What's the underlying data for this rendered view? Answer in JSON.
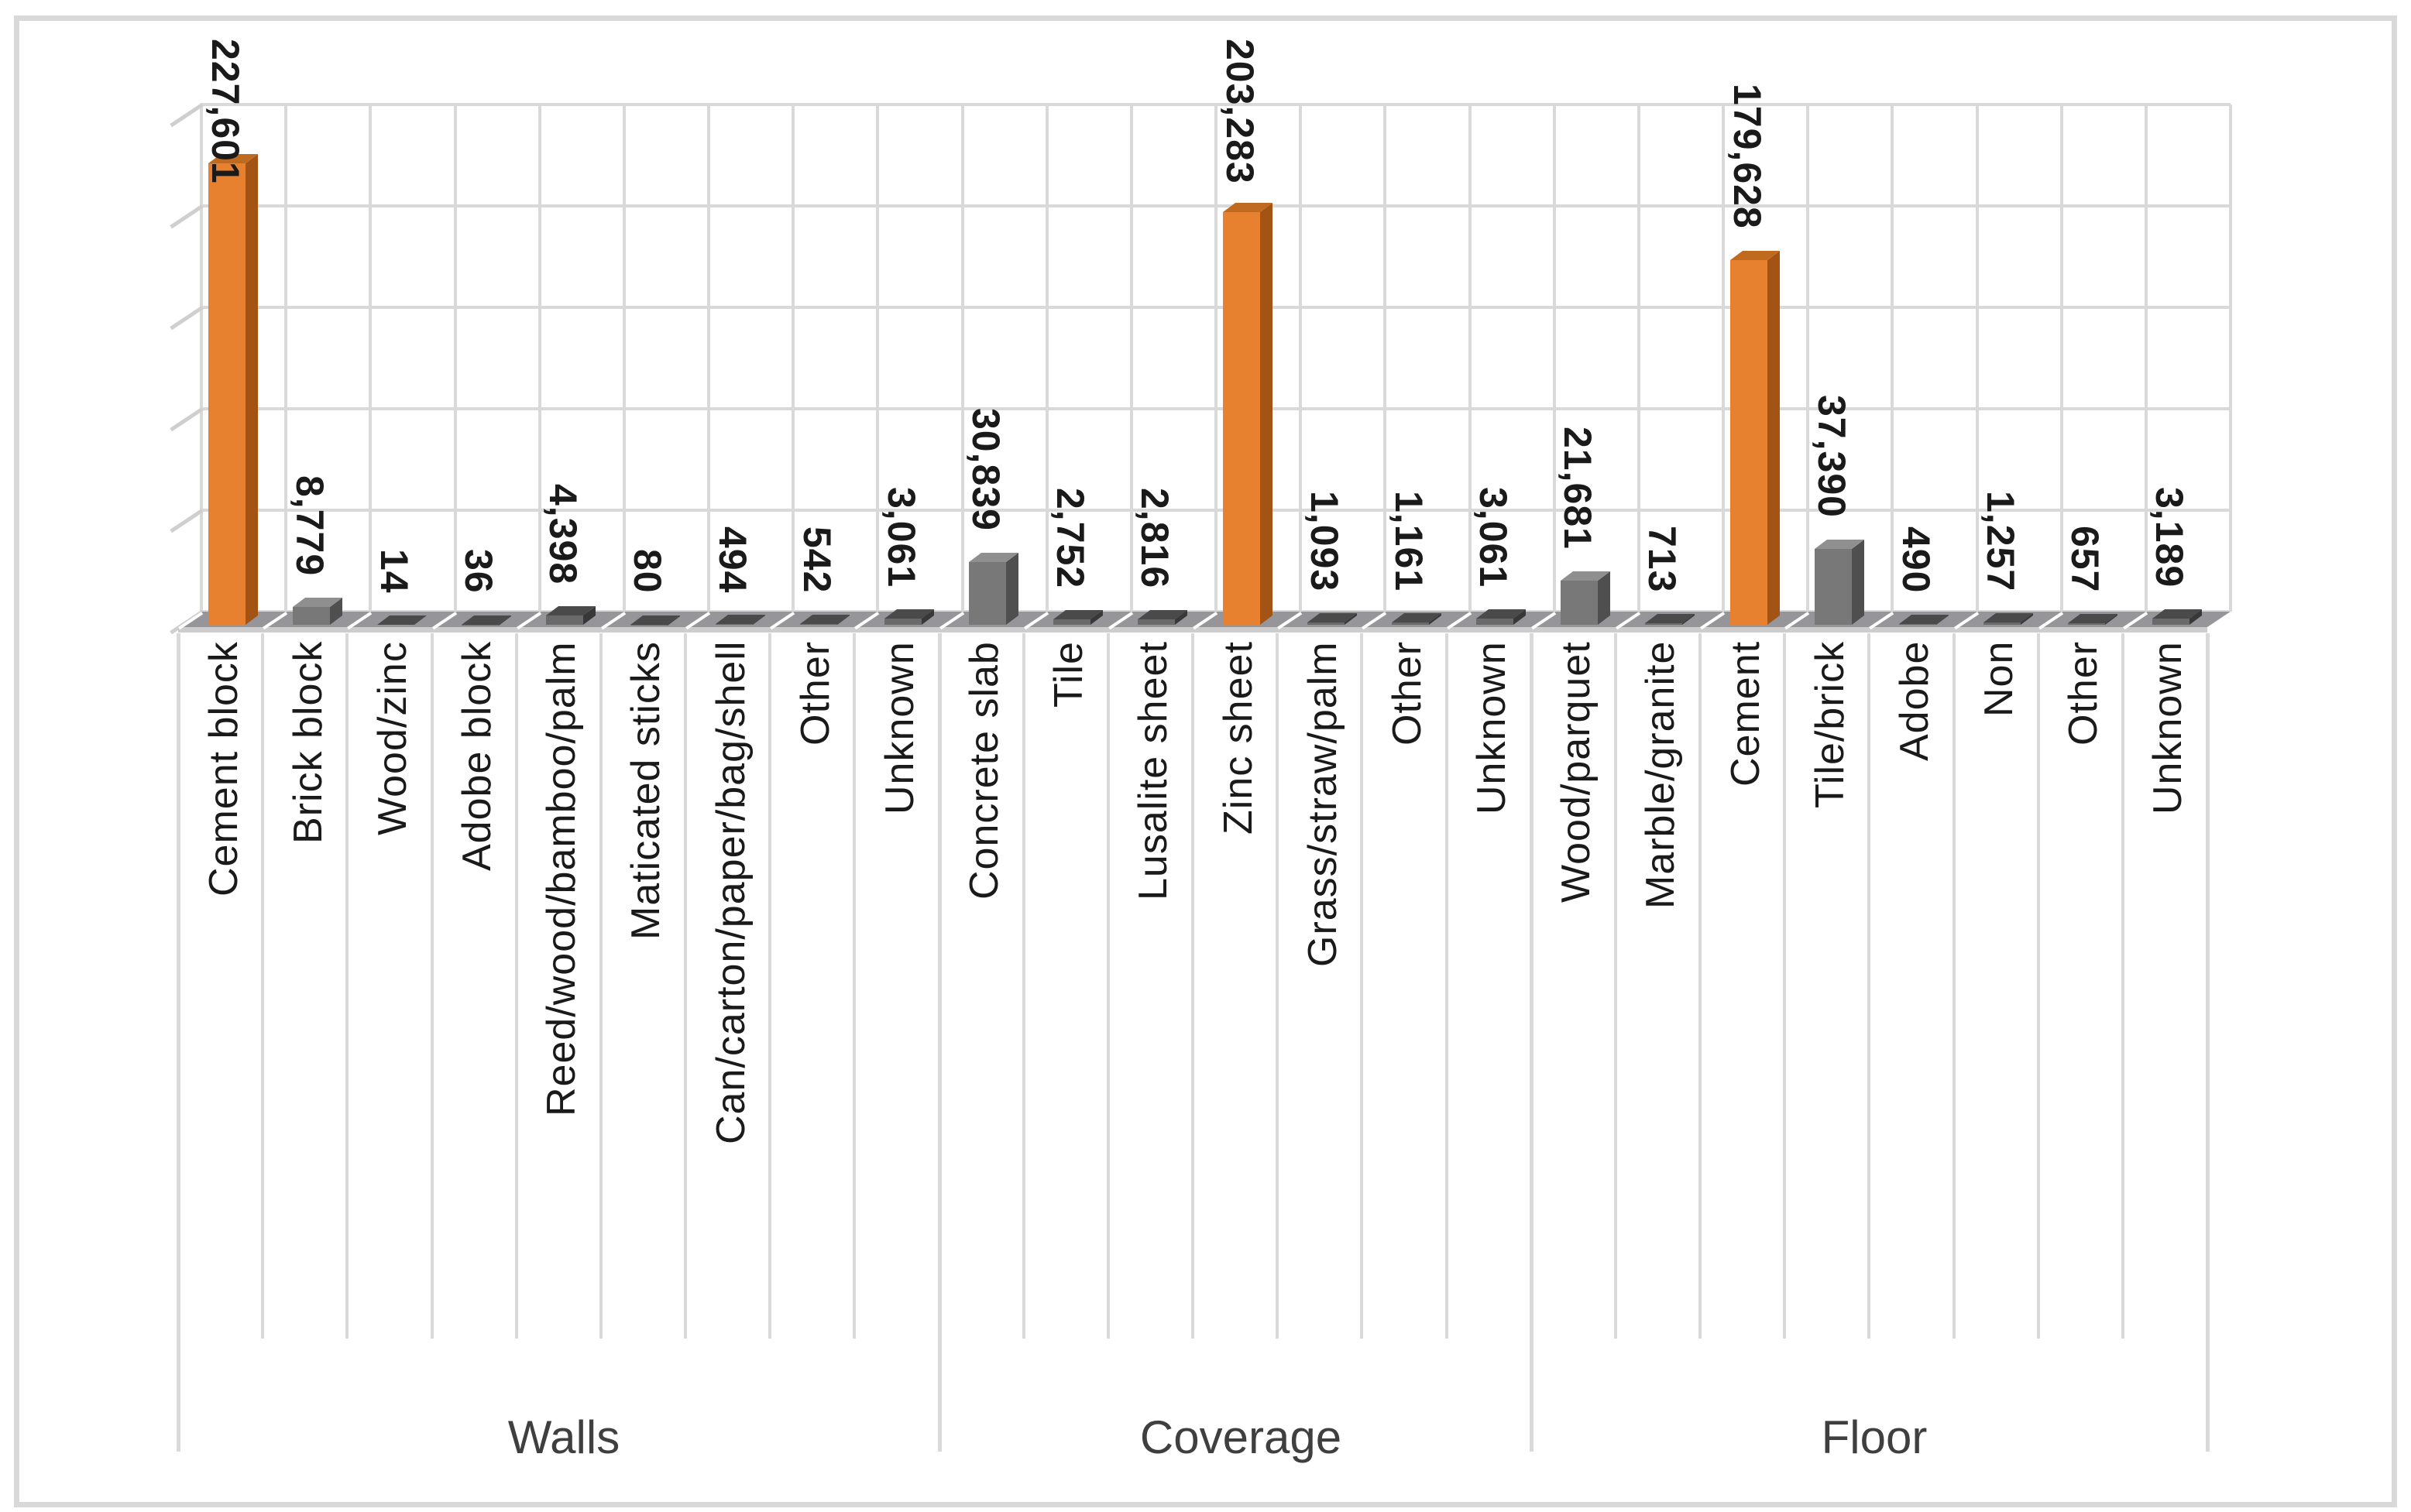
{
  "chart_data": {
    "type": "bar",
    "title": "",
    "xlabel": "",
    "ylabel": "",
    "ylim": [
      0,
      250000
    ],
    "gridline_step": 50000,
    "grid": "on",
    "legend_position": "none",
    "value_axis_labels_visible": false,
    "style": "excel-3d-clustered-column",
    "colors": {
      "highlight_front": "#E8812F",
      "highlight_top": "#C06A1F",
      "highlight_side": "#A35415",
      "gray_front": "#787878",
      "gray_top": "#8F8F8F",
      "gray_side": "#4F4F4F",
      "dark_front": "#6A6A6A",
      "dark_top": "#4A4A4A",
      "dark_side": "#383838",
      "gridline": "#d9d9d9",
      "floor": "#95959a"
    },
    "groups": [
      {
        "label": "Walls",
        "items": [
          {
            "label": "Cement block",
            "value": 227601,
            "value_label": "227,601",
            "highlight": true
          },
          {
            "label": "Brick block",
            "value": 8779,
            "value_label": "8,779",
            "highlight": false
          },
          {
            "label": "Wood/zinc",
            "value": 14,
            "value_label": "14",
            "highlight": false
          },
          {
            "label": "Adobe block",
            "value": 36,
            "value_label": "36",
            "highlight": false
          },
          {
            "label": "Reed/wood/bamboo/palm",
            "value": 4398,
            "value_label": "4,398",
            "highlight": false
          },
          {
            "label": "Maticated sticks",
            "value": 80,
            "value_label": "80",
            "highlight": false
          },
          {
            "label": "Can/carton/paper/bag/shell",
            "value": 494,
            "value_label": "494",
            "highlight": false
          },
          {
            "label": "Other",
            "value": 542,
            "value_label": "542",
            "highlight": false
          },
          {
            "label": "Unknown",
            "value": 3061,
            "value_label": "3,061",
            "highlight": false
          }
        ]
      },
      {
        "label": "Coverage",
        "items": [
          {
            "label": "Concrete slab",
            "value": 30839,
            "value_label": "30,839",
            "highlight": false
          },
          {
            "label": "Tile",
            "value": 2752,
            "value_label": "2,752",
            "highlight": false
          },
          {
            "label": "Lusalite sheet",
            "value": 2816,
            "value_label": "2,816",
            "highlight": false
          },
          {
            "label": "Zinc sheet",
            "value": 203283,
            "value_label": "203,283",
            "highlight": true
          },
          {
            "label": "Grass/straw/palm",
            "value": 1093,
            "value_label": "1,093",
            "highlight": false
          },
          {
            "label": "Other",
            "value": 1161,
            "value_label": "1,161",
            "highlight": false
          },
          {
            "label": "Unknown",
            "value": 3061,
            "value_label": "3,061",
            "highlight": false
          }
        ]
      },
      {
        "label": "Floor",
        "items": [
          {
            "label": "Wood/parquet",
            "value": 21681,
            "value_label": "21,681",
            "highlight": false
          },
          {
            "label": "Marble/granite",
            "value": 713,
            "value_label": "713",
            "highlight": false
          },
          {
            "label": "Cement",
            "value": 179628,
            "value_label": "179,628",
            "highlight": true
          },
          {
            "label": "Tile/brick",
            "value": 37390,
            "value_label": "37,390",
            "highlight": false
          },
          {
            "label": "Adobe",
            "value": 490,
            "value_label": "490",
            "highlight": false
          },
          {
            "label": "Non",
            "value": 1257,
            "value_label": "1,257",
            "highlight": false
          },
          {
            "label": "Other",
            "value": 657,
            "value_label": "657",
            "highlight": false
          },
          {
            "label": "Unknown",
            "value": 3189,
            "value_label": "3,189",
            "highlight": false
          }
        ]
      }
    ]
  }
}
